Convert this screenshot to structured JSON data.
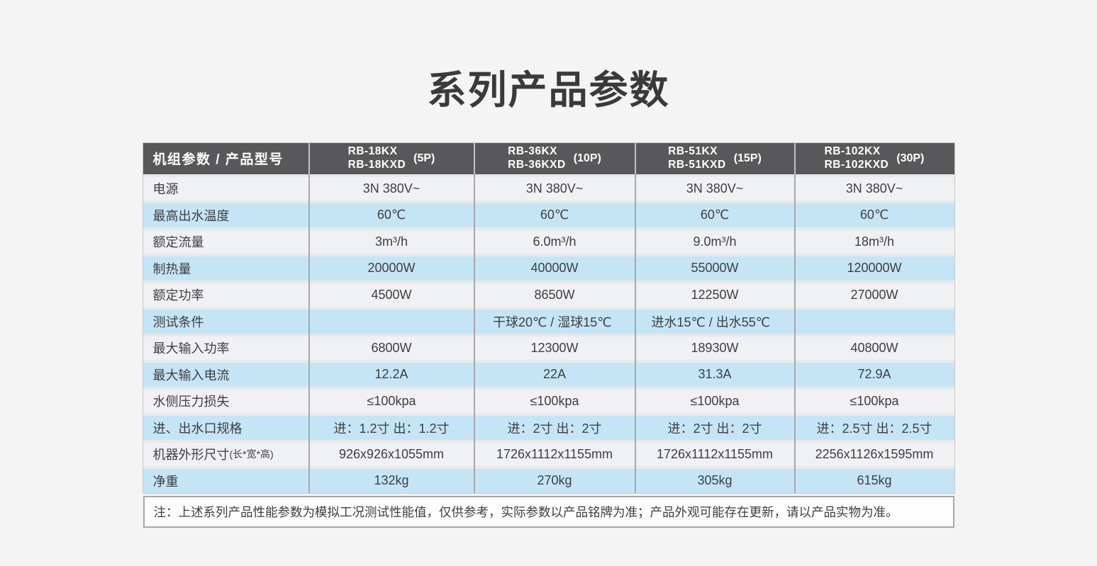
{
  "page": {
    "title": "系列产品参数",
    "note": "注：上述系列产品性能参数为模拟工况测试性能值，仅供参考，实际参数以产品铭牌为准；产品外观可能存在更新，请以产品实物为准。"
  },
  "colors": {
    "page_bg": "#F4F4F5",
    "header_bg": "#58585B",
    "row_blue": "#C5E5F7",
    "row_plain": "#F0F1F3",
    "divider": "#A7A7A9",
    "text": "#3A3A3C"
  },
  "table": {
    "header": {
      "param_label": "机组参数 / 产品型号",
      "models": [
        {
          "line1": "RB-18KX",
          "line2": "RB-18KXD",
          "power": "(5P)"
        },
        {
          "line1": "RB-36KX",
          "line2": "RB-36KXD",
          "power": "(10P)"
        },
        {
          "line1": "RB-51KX",
          "line2": "RB-51KXD",
          "power": "(15P)"
        },
        {
          "line1": "RB-102KX",
          "line2": "RB-102KXD",
          "power": "(30P)"
        }
      ]
    },
    "rows": [
      {
        "label": "电源",
        "tone": "plain",
        "values": [
          "3N 380V~",
          "3N 380V~",
          "3N 380V~",
          "3N 380V~"
        ]
      },
      {
        "label": "最高出水温度",
        "tone": "blue",
        "values": [
          "60℃",
          "60℃",
          "60℃",
          "60℃"
        ]
      },
      {
        "label": "额定流量",
        "tone": "plain",
        "values": [
          "3m³/h",
          "6.0m³/h",
          "9.0m³/h",
          "18m³/h"
        ]
      },
      {
        "label": "制热量",
        "tone": "blue",
        "values": [
          "20000W",
          "40000W",
          "55000W",
          "120000W"
        ]
      },
      {
        "label": "额定功率",
        "tone": "plain",
        "values": [
          "4500W",
          "8650W",
          "12250W",
          "27000W"
        ]
      },
      {
        "label": "测试条件",
        "tone": "blue",
        "merged": [
          "干球20℃ / 湿球15℃",
          "进水15℃ / 出水55℃"
        ]
      },
      {
        "label": "最大输入功率",
        "tone": "plain",
        "values": [
          "6800W",
          "12300W",
          "18930W",
          "40800W"
        ]
      },
      {
        "label": "最大输入电流",
        "tone": "blue",
        "values": [
          "12.2A",
          "22A",
          "31.3A",
          "72.9A"
        ]
      },
      {
        "label": "水侧压力损失",
        "tone": "plain",
        "values": [
          "≤100kpa",
          "≤100kpa",
          "≤100kpa",
          "≤100kpa"
        ]
      },
      {
        "label": "进、出水口规格",
        "tone": "blue",
        "values": [
          "进：1.2寸  出：1.2寸",
          "进：2寸  出：2寸",
          "进：2寸  出：2寸",
          "进：2.5寸  出：2.5寸"
        ]
      },
      {
        "label": "机器外形尺寸",
        "label_suffix": "(长*宽*高)",
        "tone": "plain",
        "values": [
          "926x926x1055mm",
          "1726x1112x1155mm",
          "1726x1112x1155mm",
          "2256x1126x1595mm"
        ]
      },
      {
        "label": "净重",
        "tone": "blue",
        "values": [
          "132kg",
          "270kg",
          "305kg",
          "615kg"
        ]
      }
    ]
  }
}
